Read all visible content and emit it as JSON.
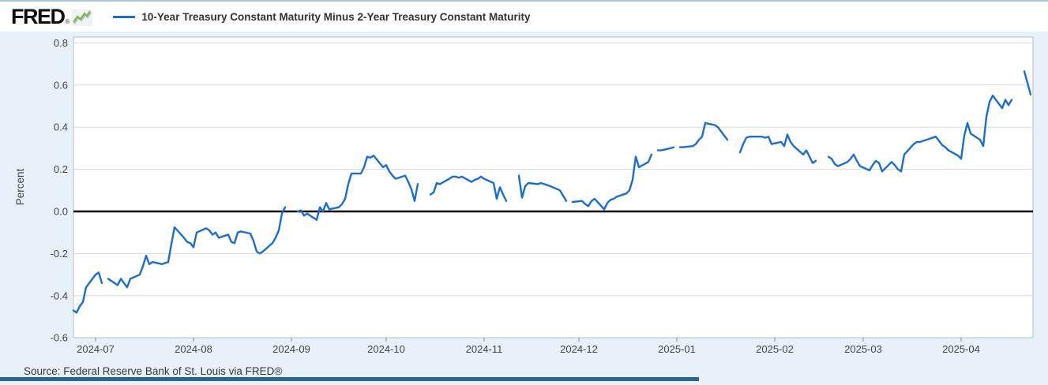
{
  "header": {
    "logo_text": "FRED",
    "logo_registered": "®",
    "legend_label": "10-Year Treasury Constant Maturity Minus 2-Year Treasury Constant Maturity"
  },
  "footer": {
    "source_text": "Source: Federal Reserve Bank of St. Louis via FRED®"
  },
  "colors": {
    "line": "#1a6fce",
    "panel_bg": "#e8f1fa",
    "plot_bg": "#ffffff",
    "grid": "#d8d8d8",
    "plot_border": "#b9bec4",
    "zero_line": "#000000",
    "axis_text": "#444444",
    "tick_mark": "#8a8a8a",
    "legend_text": "#333333",
    "source_text": "#373737",
    "bottom_bar": "#2a6496",
    "logo_green": "#7fb241",
    "logo_green_shadow": "#b3bcc2",
    "top_border": "#a9c6dd"
  },
  "chart_data": {
    "type": "line",
    "title": "10-Year Treasury Constant Maturity Minus 2-Year Treasury Constant Maturity",
    "xlabel": "",
    "ylabel": "Percent",
    "ylim": [
      -0.6,
      0.83
    ],
    "grid": true,
    "zero_line": true,
    "legend_position": "top-left",
    "date_range": [
      "2024-06-24",
      "2025-04-23"
    ],
    "yticks": [
      "0.8",
      "0.6",
      "0.4",
      "0.2",
      "0.0",
      "-0.2",
      "-0.4",
      "-0.6"
    ],
    "xticks": [
      {
        "date": "2024-07-01",
        "label": "2024-07"
      },
      {
        "date": "2024-08-01",
        "label": "2024-08"
      },
      {
        "date": "2024-09-01",
        "label": "2024-09"
      },
      {
        "date": "2024-10-01",
        "label": "2024-10"
      },
      {
        "date": "2024-11-01",
        "label": "2024-11"
      },
      {
        "date": "2024-12-01",
        "label": "2024-12"
      },
      {
        "date": "2025-01-01",
        "label": "2025-01"
      },
      {
        "date": "2025-02-01",
        "label": "2025-02"
      },
      {
        "date": "2025-03-01",
        "label": "2025-03"
      },
      {
        "date": "2025-04-01",
        "label": "2025-04"
      }
    ],
    "series": [
      {
        "name": "10-Year Treasury Constant Maturity Minus 2-Year Treasury Constant Maturity",
        "units": "Percent",
        "points": [
          [
            "2024-06-24",
            -0.47
          ],
          [
            "2024-06-25",
            -0.48
          ],
          [
            "2024-06-26",
            -0.45
          ],
          [
            "2024-06-27",
            -0.43
          ],
          [
            "2024-06-28",
            -0.36
          ],
          [
            "2024-07-01",
            -0.3
          ],
          [
            "2024-07-02",
            -0.29
          ],
          [
            "2024-07-03",
            -0.34
          ],
          [
            "2024-07-04",
            null
          ],
          [
            "2024-07-05",
            -0.32
          ],
          [
            "2024-07-08",
            -0.35
          ],
          [
            "2024-07-09",
            -0.32
          ],
          [
            "2024-07-10",
            -0.34
          ],
          [
            "2024-07-11",
            -0.36
          ],
          [
            "2024-07-12",
            -0.32
          ],
          [
            "2024-07-15",
            -0.3
          ],
          [
            "2024-07-16",
            -0.26
          ],
          [
            "2024-07-17",
            -0.21
          ],
          [
            "2024-07-18",
            -0.25
          ],
          [
            "2024-07-19",
            -0.24
          ],
          [
            "2024-07-22",
            -0.25
          ],
          [
            "2024-07-23",
            -0.245
          ],
          [
            "2024-07-24",
            -0.24
          ],
          [
            "2024-07-25",
            -0.155
          ],
          [
            "2024-07-26",
            -0.075
          ],
          [
            "2024-07-29",
            -0.125
          ],
          [
            "2024-07-30",
            -0.145
          ],
          [
            "2024-07-31",
            -0.15
          ],
          [
            "2024-08-01",
            -0.17
          ],
          [
            "2024-08-02",
            -0.1
          ],
          [
            "2024-08-05",
            -0.08
          ],
          [
            "2024-08-06",
            -0.09
          ],
          [
            "2024-08-07",
            -0.11
          ],
          [
            "2024-08-08",
            -0.1
          ],
          [
            "2024-08-09",
            -0.125
          ],
          [
            "2024-08-12",
            -0.11
          ],
          [
            "2024-08-13",
            -0.145
          ],
          [
            "2024-08-14",
            -0.15
          ],
          [
            "2024-08-15",
            -0.1
          ],
          [
            "2024-08-16",
            -0.095
          ],
          [
            "2024-08-19",
            -0.105
          ],
          [
            "2024-08-20",
            -0.14
          ],
          [
            "2024-08-21",
            -0.19
          ],
          [
            "2024-08-22",
            -0.2
          ],
          [
            "2024-08-23",
            -0.19
          ],
          [
            "2024-08-26",
            -0.15
          ],
          [
            "2024-08-27",
            -0.125
          ],
          [
            "2024-08-28",
            -0.09
          ],
          [
            "2024-08-29",
            -0.01
          ],
          [
            "2024-08-30",
            0.02
          ],
          [
            "2024-09-02",
            null
          ],
          [
            "2024-09-03",
            0.0
          ],
          [
            "2024-09-04",
            0.005
          ],
          [
            "2024-09-05",
            -0.02
          ],
          [
            "2024-09-06",
            -0.01
          ],
          [
            "2024-09-09",
            -0.04
          ],
          [
            "2024-09-10",
            0.02
          ],
          [
            "2024-09-11",
            0.0
          ],
          [
            "2024-09-12",
            0.04
          ],
          [
            "2024-09-13",
            0.01
          ],
          [
            "2024-09-16",
            0.02
          ],
          [
            "2024-09-17",
            0.035
          ],
          [
            "2024-09-18",
            0.06
          ],
          [
            "2024-09-19",
            0.13
          ],
          [
            "2024-09-20",
            0.18
          ],
          [
            "2024-09-23",
            0.18
          ],
          [
            "2024-09-24",
            0.21
          ],
          [
            "2024-09-25",
            0.26
          ],
          [
            "2024-09-26",
            0.255
          ],
          [
            "2024-09-27",
            0.265
          ],
          [
            "2024-09-30",
            0.21
          ],
          [
            "2024-10-01",
            0.22
          ],
          [
            "2024-10-02",
            0.19
          ],
          [
            "2024-10-03",
            0.17
          ],
          [
            "2024-10-04",
            0.155
          ],
          [
            "2024-10-07",
            0.17
          ],
          [
            "2024-10-08",
            0.14
          ],
          [
            "2024-10-09",
            0.105
          ],
          [
            "2024-10-10",
            0.05
          ],
          [
            "2024-10-11",
            0.13
          ],
          [
            "2024-10-14",
            null
          ],
          [
            "2024-10-15",
            0.08
          ],
          [
            "2024-10-16",
            0.09
          ],
          [
            "2024-10-17",
            0.135
          ],
          [
            "2024-10-18",
            0.13
          ],
          [
            "2024-10-21",
            0.155
          ],
          [
            "2024-10-22",
            0.165
          ],
          [
            "2024-10-23",
            0.165
          ],
          [
            "2024-10-24",
            0.16
          ],
          [
            "2024-10-25",
            0.165
          ],
          [
            "2024-10-28",
            0.14
          ],
          [
            "2024-10-29",
            0.15
          ],
          [
            "2024-10-30",
            0.155
          ],
          [
            "2024-10-31",
            0.165
          ],
          [
            "2024-11-01",
            0.155
          ],
          [
            "2024-11-04",
            0.135
          ],
          [
            "2024-11-05",
            0.06
          ],
          [
            "2024-11-06",
            0.115
          ],
          [
            "2024-11-07",
            0.08
          ],
          [
            "2024-11-08",
            0.05
          ],
          [
            "2024-11-11",
            null
          ],
          [
            "2024-11-12",
            0.17
          ],
          [
            "2024-11-13",
            0.065
          ],
          [
            "2024-11-14",
            0.12
          ],
          [
            "2024-11-15",
            0.135
          ],
          [
            "2024-11-18",
            0.13
          ],
          [
            "2024-11-19",
            0.135
          ],
          [
            "2024-11-20",
            0.13
          ],
          [
            "2024-11-21",
            0.125
          ],
          [
            "2024-11-22",
            0.12
          ],
          [
            "2024-11-25",
            0.1
          ],
          [
            "2024-11-26",
            0.075
          ],
          [
            "2024-11-27",
            0.05
          ],
          [
            "2024-11-28",
            null
          ],
          [
            "2024-11-29",
            0.045
          ],
          [
            "2024-12-02",
            0.05
          ],
          [
            "2024-12-03",
            0.035
          ],
          [
            "2024-12-04",
            0.025
          ],
          [
            "2024-12-05",
            0.05
          ],
          [
            "2024-12-06",
            0.06
          ],
          [
            "2024-12-09",
            0.01
          ],
          [
            "2024-12-10",
            0.04
          ],
          [
            "2024-12-11",
            0.055
          ],
          [
            "2024-12-12",
            0.06
          ],
          [
            "2024-12-13",
            0.07
          ],
          [
            "2024-12-16",
            0.085
          ],
          [
            "2024-12-17",
            0.1
          ],
          [
            "2024-12-18",
            0.15
          ],
          [
            "2024-12-19",
            0.26
          ],
          [
            "2024-12-20",
            0.21
          ],
          [
            "2024-12-23",
            0.235
          ],
          [
            "2024-12-24",
            0.27
          ],
          [
            "2024-12-25",
            null
          ],
          [
            "2024-12-26",
            0.29
          ],
          [
            "2024-12-27",
            0.29
          ],
          [
            "2024-12-30",
            0.3
          ],
          [
            "2024-12-31",
            0.305
          ],
          [
            "2025-01-01",
            null
          ],
          [
            "2025-01-02",
            0.305
          ],
          [
            "2025-01-03",
            0.305
          ],
          [
            "2025-01-06",
            0.31
          ],
          [
            "2025-01-07",
            0.32
          ],
          [
            "2025-01-08",
            0.34
          ],
          [
            "2025-01-09",
            0.355
          ],
          [
            "2025-01-10",
            0.42
          ],
          [
            "2025-01-13",
            0.41
          ],
          [
            "2025-01-14",
            0.4
          ],
          [
            "2025-01-15",
            0.38
          ],
          [
            "2025-01-16",
            0.36
          ],
          [
            "2025-01-17",
            0.34
          ],
          [
            "2025-01-20",
            null
          ],
          [
            "2025-01-21",
            0.28
          ],
          [
            "2025-01-22",
            0.32
          ],
          [
            "2025-01-23",
            0.35
          ],
          [
            "2025-01-24",
            0.355
          ],
          [
            "2025-01-27",
            0.355
          ],
          [
            "2025-01-28",
            0.355
          ],
          [
            "2025-01-29",
            0.35
          ],
          [
            "2025-01-30",
            0.355
          ],
          [
            "2025-01-31",
            0.32
          ],
          [
            "2025-02-03",
            0.33
          ],
          [
            "2025-02-04",
            0.31
          ],
          [
            "2025-02-05",
            0.365
          ],
          [
            "2025-02-06",
            0.33
          ],
          [
            "2025-02-07",
            0.31
          ],
          [
            "2025-02-10",
            0.27
          ],
          [
            "2025-02-11",
            0.29
          ],
          [
            "2025-02-12",
            0.26
          ],
          [
            "2025-02-13",
            0.23
          ],
          [
            "2025-02-14",
            0.24
          ],
          [
            "2025-02-17",
            null
          ],
          [
            "2025-02-18",
            0.26
          ],
          [
            "2025-02-19",
            0.25
          ],
          [
            "2025-02-20",
            0.225
          ],
          [
            "2025-02-21",
            0.215
          ],
          [
            "2025-02-24",
            0.235
          ],
          [
            "2025-02-25",
            0.25
          ],
          [
            "2025-02-26",
            0.27
          ],
          [
            "2025-02-27",
            0.24
          ],
          [
            "2025-02-28",
            0.215
          ],
          [
            "2025-03-03",
            0.195
          ],
          [
            "2025-03-04",
            0.22
          ],
          [
            "2025-03-05",
            0.24
          ],
          [
            "2025-03-06",
            0.23
          ],
          [
            "2025-03-07",
            0.19
          ],
          [
            "2025-03-10",
            0.235
          ],
          [
            "2025-03-11",
            0.22
          ],
          [
            "2025-03-12",
            0.2
          ],
          [
            "2025-03-13",
            0.19
          ],
          [
            "2025-03-14",
            0.27
          ],
          [
            "2025-03-17",
            0.32
          ],
          [
            "2025-03-18",
            0.33
          ],
          [
            "2025-03-19",
            0.33
          ],
          [
            "2025-03-20",
            0.335
          ],
          [
            "2025-03-21",
            0.34
          ],
          [
            "2025-03-24",
            0.355
          ],
          [
            "2025-03-25",
            0.335
          ],
          [
            "2025-03-26",
            0.315
          ],
          [
            "2025-03-27",
            0.305
          ],
          [
            "2025-03-28",
            0.29
          ],
          [
            "2025-03-31",
            0.265
          ],
          [
            "2025-04-01",
            0.25
          ],
          [
            "2025-04-02",
            0.36
          ],
          [
            "2025-04-03",
            0.42
          ],
          [
            "2025-04-04",
            0.37
          ],
          [
            "2025-04-07",
            0.34
          ],
          [
            "2025-04-08",
            0.31
          ],
          [
            "2025-04-09",
            0.45
          ],
          [
            "2025-04-10",
            0.52
          ],
          [
            "2025-04-11",
            0.55
          ],
          [
            "2025-04-14",
            0.49
          ],
          [
            "2025-04-15",
            0.53
          ],
          [
            "2025-04-16",
            0.505
          ],
          [
            "2025-04-17",
            0.53
          ],
          [
            "2025-04-18",
            null
          ],
          [
            "2025-04-21",
            0.665
          ],
          [
            "2025-04-22",
            0.61
          ],
          [
            "2025-04-23",
            0.555
          ]
        ]
      }
    ]
  }
}
